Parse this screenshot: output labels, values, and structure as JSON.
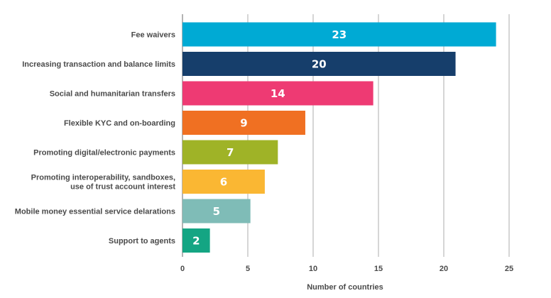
{
  "chart_data": {
    "type": "bar",
    "orientation": "horizontal",
    "title": "",
    "xlabel": "Number of countries",
    "ylabel": "",
    "xlim": [
      0,
      25
    ],
    "xticks": [
      0,
      5,
      10,
      15,
      20,
      25
    ],
    "grid": true,
    "categories": [
      "Fee waivers",
      "Increasing transaction and balance limits",
      "Social and humanitarian transfers",
      "Flexible KYC and on-boarding",
      "Promoting digital/electronic payments",
      "Promoting interoperability, sandboxes, use of trust account interest",
      "Mobile money essential service delarations",
      "Support to agents"
    ],
    "category_lines": [
      [
        "Fee waivers"
      ],
      [
        "Increasing transaction and balance limits"
      ],
      [
        "Social and humanitarian transfers"
      ],
      [
        "Flexible KYC and on-boarding"
      ],
      [
        "Promoting digital/electronic payments"
      ],
      [
        "Promoting interoperability, sandboxes,",
        "use of trust account interest"
      ],
      [
        "Mobile money essential service delarations"
      ],
      [
        "Support to agents"
      ]
    ],
    "values": [
      23,
      20,
      14,
      9,
      7,
      6,
      5,
      2
    ],
    "bar_lengths": [
      24,
      20.9,
      14.6,
      9.4,
      7.3,
      6.3,
      5.2,
      2.1
    ],
    "data_labels": [
      "23",
      "20",
      "14",
      "9",
      "7",
      "6",
      "5",
      "2"
    ],
    "colors": [
      "#00aad4",
      "#163e6b",
      "#ee3a73",
      "#f07022",
      "#9fb327",
      "#fab733",
      "#7fbcb7",
      "#14a583"
    ]
  }
}
